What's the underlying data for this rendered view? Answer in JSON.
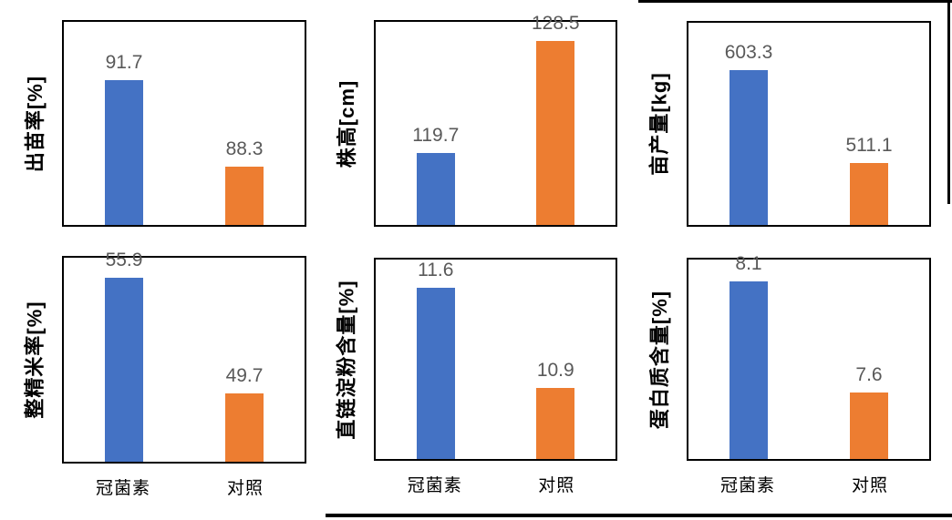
{
  "colors": {
    "series": [
      "#4472C4",
      "#ED7D31"
    ],
    "data_label": "#595959",
    "axis_text": "#000000",
    "panel_border": "#000000",
    "background": "#ffffff"
  },
  "series_legend": [
    "冠菌素",
    "对照"
  ],
  "chart_data": [
    {
      "type": "bar",
      "ylabel": "出苗率[%]",
      "categories": [
        "冠菌素",
        "对照"
      ],
      "values": [
        91.7,
        88.3
      ],
      "data_labels": [
        "91.7",
        "88.3"
      ],
      "ylim": [
        86,
        94
      ],
      "grid": false,
      "legend": "none",
      "x_axis_labels_visible": false
    },
    {
      "type": "bar",
      "ylabel": "株高[cm]",
      "categories": [
        "冠菌素",
        "对照"
      ],
      "values": [
        119.7,
        128.5
      ],
      "data_labels": [
        "119.7",
        "128.5"
      ],
      "ylim": [
        114,
        130
      ],
      "grid": false,
      "legend": "none",
      "x_axis_labels_visible": false
    },
    {
      "type": "bar",
      "ylabel": "亩产量[kg]",
      "categories": [
        "冠菌素",
        "对照"
      ],
      "values": [
        603.3,
        511.1
      ],
      "data_labels": [
        "603.3",
        "511.1"
      ],
      "ylim": [
        450,
        650
      ],
      "grid": false,
      "legend": "none",
      "x_axis_labels_visible": false
    },
    {
      "type": "bar",
      "ylabel": "整精米率[%]",
      "categories": [
        "冠菌素",
        "对照"
      ],
      "values": [
        55.9,
        49.7
      ],
      "data_labels": [
        "55.9",
        "49.7"
      ],
      "ylim": [
        46,
        57
      ],
      "grid": false,
      "legend": "none",
      "x_axis_labels_visible": true
    },
    {
      "type": "bar",
      "ylabel": "直链淀粉含量[%]",
      "categories": [
        "冠菌素",
        "对照"
      ],
      "values": [
        11.6,
        10.9
      ],
      "data_labels": [
        "11.6",
        "10.9"
      ],
      "ylim": [
        10.4,
        11.8
      ],
      "grid": false,
      "legend": "none",
      "x_axis_labels_visible": true
    },
    {
      "type": "bar",
      "ylabel": "蛋白质含量[%]",
      "categories": [
        "冠菌素",
        "对照"
      ],
      "values": [
        8.1,
        7.6
      ],
      "data_labels": [
        "8.1",
        "7.6"
      ],
      "ylim": [
        7.3,
        8.2
      ],
      "grid": false,
      "legend": "none",
      "x_axis_labels_visible": true
    }
  ]
}
